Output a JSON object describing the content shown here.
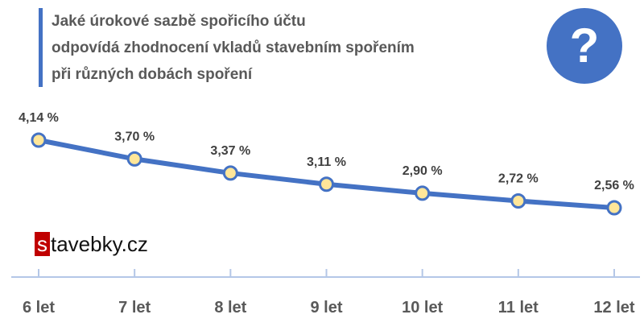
{
  "header": {
    "title_lines": [
      "Jaké úrokové sazbě spořicího účtu",
      "odpovídá zhodnocení vkladů stavebním spořením",
      "při různých dobách spoření"
    ],
    "help_icon": "question-icon",
    "help_glyph": "?"
  },
  "logo": {
    "first_letter": "s",
    "rest": "tavebky.cz"
  },
  "colors": {
    "accent": "#4472C4",
    "title_text": "#595959",
    "marker_fill": "#FFE699",
    "axis": "#B4C7E7",
    "label_text": "#404040",
    "logo_box": "#C00000"
  },
  "chart_data": {
    "type": "line",
    "title": "Jaké úrokové sazbě spořicího účtu odpovídá zhodnocení vkladů stavebním spořením při různých dobách spoření",
    "categories": [
      "6 let",
      "7 let",
      "8 let",
      "9 let",
      "10 let",
      "11 let",
      "12 let"
    ],
    "series": [
      {
        "values": [
          4.14,
          3.7,
          3.37,
          3.11,
          2.9,
          2.72,
          2.56
        ],
        "labels": [
          "4,14 %",
          "3,70 %",
          "3,37 %",
          "3,11 %",
          "2,90 %",
          "2,72 %",
          "2,56 %"
        ]
      }
    ],
    "xlabel": "",
    "ylabel": "",
    "grid": false,
    "legend": "none"
  }
}
